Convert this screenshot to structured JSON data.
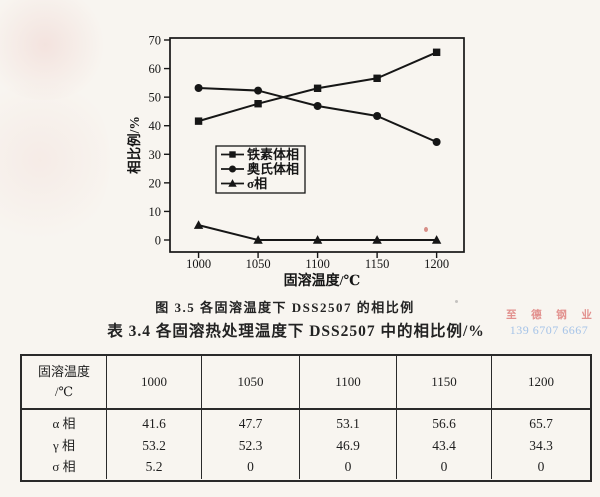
{
  "page": {
    "background": "#f8f5f0",
    "ink_color": "#1f1f1f"
  },
  "figure": {
    "caption": "图 3.5  各固溶温度下 DSS2507 的相比例"
  },
  "chart_data": {
    "type": "line",
    "x": [
      1000,
      1050,
      1100,
      1150,
      1200
    ],
    "series": [
      {
        "name": "铁素体相",
        "marker": "square",
        "values": [
          41.6,
          47.7,
          53.1,
          56.6,
          65.7
        ]
      },
      {
        "name": "奥氏体相",
        "marker": "circle",
        "values": [
          53.2,
          52.3,
          46.9,
          43.4,
          34.3
        ]
      },
      {
        "name": "σ相",
        "marker": "triangle",
        "values": [
          5.2,
          0,
          0,
          0,
          0
        ]
      }
    ],
    "xlabel": "固溶温度/℃",
    "ylabel": "相比例/%",
    "xticks": [
      1000,
      1050,
      1100,
      1150,
      1200
    ],
    "yticks": [
      0,
      10,
      20,
      30,
      40,
      50,
      60,
      70
    ],
    "xlim": [
      976,
      1223
    ],
    "ylim": [
      -4.2,
      70.7
    ],
    "grid": false,
    "legend_position": "inside-left-middle",
    "line_color": "#161616"
  },
  "watermark": {
    "name_text": "至 德 钢 业",
    "phone_text": "139 6707 6667",
    "name_color": "#e2918e",
    "phone_color": "#a5c3e8"
  },
  "table": {
    "caption": "表 3.4  各固溶热处理温度下 DSS2507 中的相比例/%",
    "header": {
      "line1": "固溶温度",
      "line2": "/℃"
    },
    "temperatures": [
      "1000",
      "1050",
      "1100",
      "1150",
      "1200"
    ],
    "rows": [
      {
        "label": "α 相",
        "values": [
          "41.6",
          "47.7",
          "53.1",
          "56.6",
          "65.7"
        ]
      },
      {
        "label": "γ 相",
        "values": [
          "53.2",
          "52.3",
          "46.9",
          "43.4",
          "34.3"
        ]
      },
      {
        "label": "σ 相",
        "values": [
          "5.2",
          "0",
          "0",
          "0",
          "0"
        ]
      }
    ]
  }
}
